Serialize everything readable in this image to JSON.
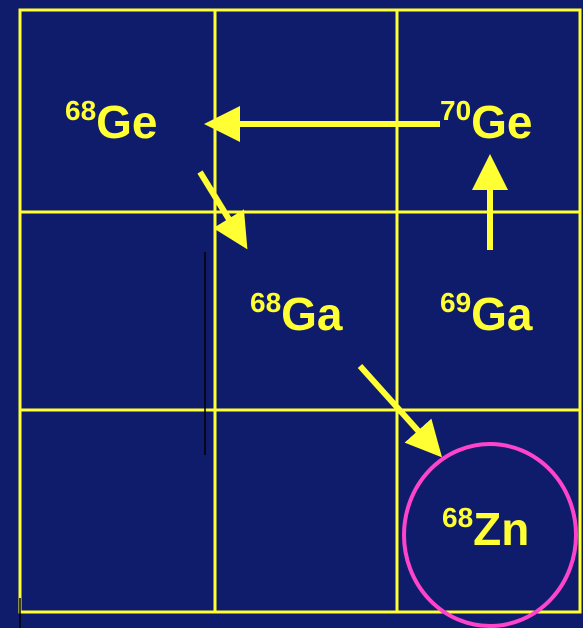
{
  "nodes": [
    {
      "mass": "68",
      "symbol": "Ge"
    },
    {
      "mass": "70",
      "symbol": "Ge"
    },
    {
      "mass": "68",
      "symbol": "Ga"
    },
    {
      "mass": "69",
      "symbol": "Ga"
    },
    {
      "mass": "68",
      "symbol": "Zn"
    }
  ]
}
